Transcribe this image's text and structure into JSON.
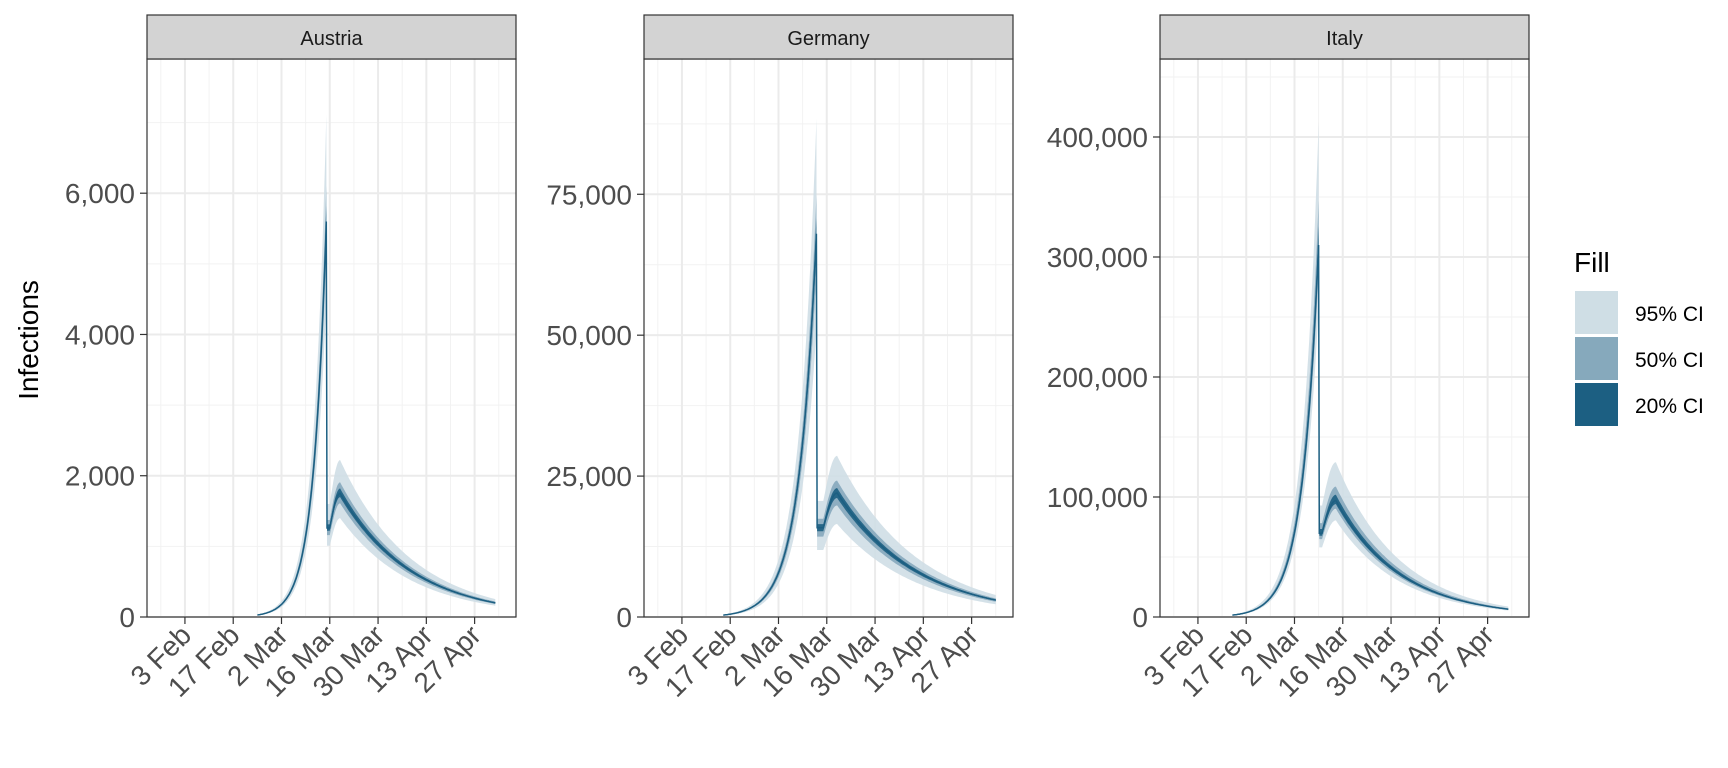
{
  "chart_data": {
    "type": "area",
    "ylabel": "Infections",
    "x_tick_labels": [
      "3 Feb",
      "17 Feb",
      "2 Mar",
      "16 Mar",
      "30 Mar",
      "13 Apr",
      "27 Apr"
    ],
    "x_tick_dates": [
      "2020-02-03",
      "2020-02-17",
      "2020-03-02",
      "2020-03-16",
      "2020-03-30",
      "2020-04-13",
      "2020-04-27"
    ],
    "xlim": [
      "2020-01-23",
      "2020-05-09"
    ],
    "grid": true,
    "legend": {
      "title": "Fill",
      "position": "right",
      "items": [
        {
          "label": "95% CI",
          "color": "#cfdee5"
        },
        {
          "label": "50% CI",
          "color": "#86a9bc"
        },
        {
          "label": "20% CI",
          "color": "#1c5f82"
        }
      ]
    },
    "colors": {
      "line": "#1c5f82",
      "strip": "#d3d3d3",
      "grid": "#ebebeb"
    },
    "panels": [
      {
        "name": "Austria",
        "ylim": [
          0,
          7900
        ],
        "yticks": [
          0,
          2000,
          4000,
          6000
        ],
        "ytick_labels": [
          "0",
          "2,000",
          "4,000",
          "6,000"
        ],
        "start": "2020-02-24",
        "jump": "2020-03-15",
        "peak_median": 5600,
        "post_start": "2020-03-16",
        "post_peak_date": "2020-03-19",
        "post_peak_median": 1750,
        "end": "2020-05-03",
        "end_median": 200,
        "rel_ci95": [
          0.8,
          1.27
        ],
        "rel_ci50": [
          0.92,
          1.09
        ],
        "rel_ci20": [
          0.97,
          1.04
        ]
      },
      {
        "name": "Germany",
        "ylim": [
          0,
          99000
        ],
        "yticks": [
          0,
          25000,
          50000,
          75000
        ],
        "ytick_labels": [
          "0",
          "25,000",
          "50,000",
          "75,000"
        ],
        "start": "2020-02-15",
        "jump": "2020-03-13",
        "peak_median": 68000,
        "post_start": "2020-03-15",
        "post_peak_date": "2020-03-19",
        "post_peak_median": 22000,
        "end": "2020-05-04",
        "end_median": 3000,
        "rel_ci95": [
          0.75,
          1.3
        ],
        "rel_ci50": [
          0.9,
          1.1
        ],
        "rel_ci20": [
          0.96,
          1.04
        ]
      },
      {
        "name": "Italy",
        "ylim": [
          0,
          465000
        ],
        "yticks": [
          0,
          100000,
          200000,
          300000,
          400000
        ],
        "ytick_labels": [
          "0",
          "100,000",
          "200,000",
          "300,000",
          "400,000"
        ],
        "start": "2020-02-13",
        "jump": "2020-03-09",
        "peak_median": 310000,
        "post_start": "2020-03-10",
        "post_peak_date": "2020-03-14",
        "post_peak_median": 97000,
        "end": "2020-05-03",
        "end_median": 6500,
        "rel_ci95": [
          0.83,
          1.33
        ],
        "rel_ci50": [
          0.93,
          1.12
        ],
        "rel_ci20": [
          0.97,
          1.05
        ]
      }
    ]
  }
}
